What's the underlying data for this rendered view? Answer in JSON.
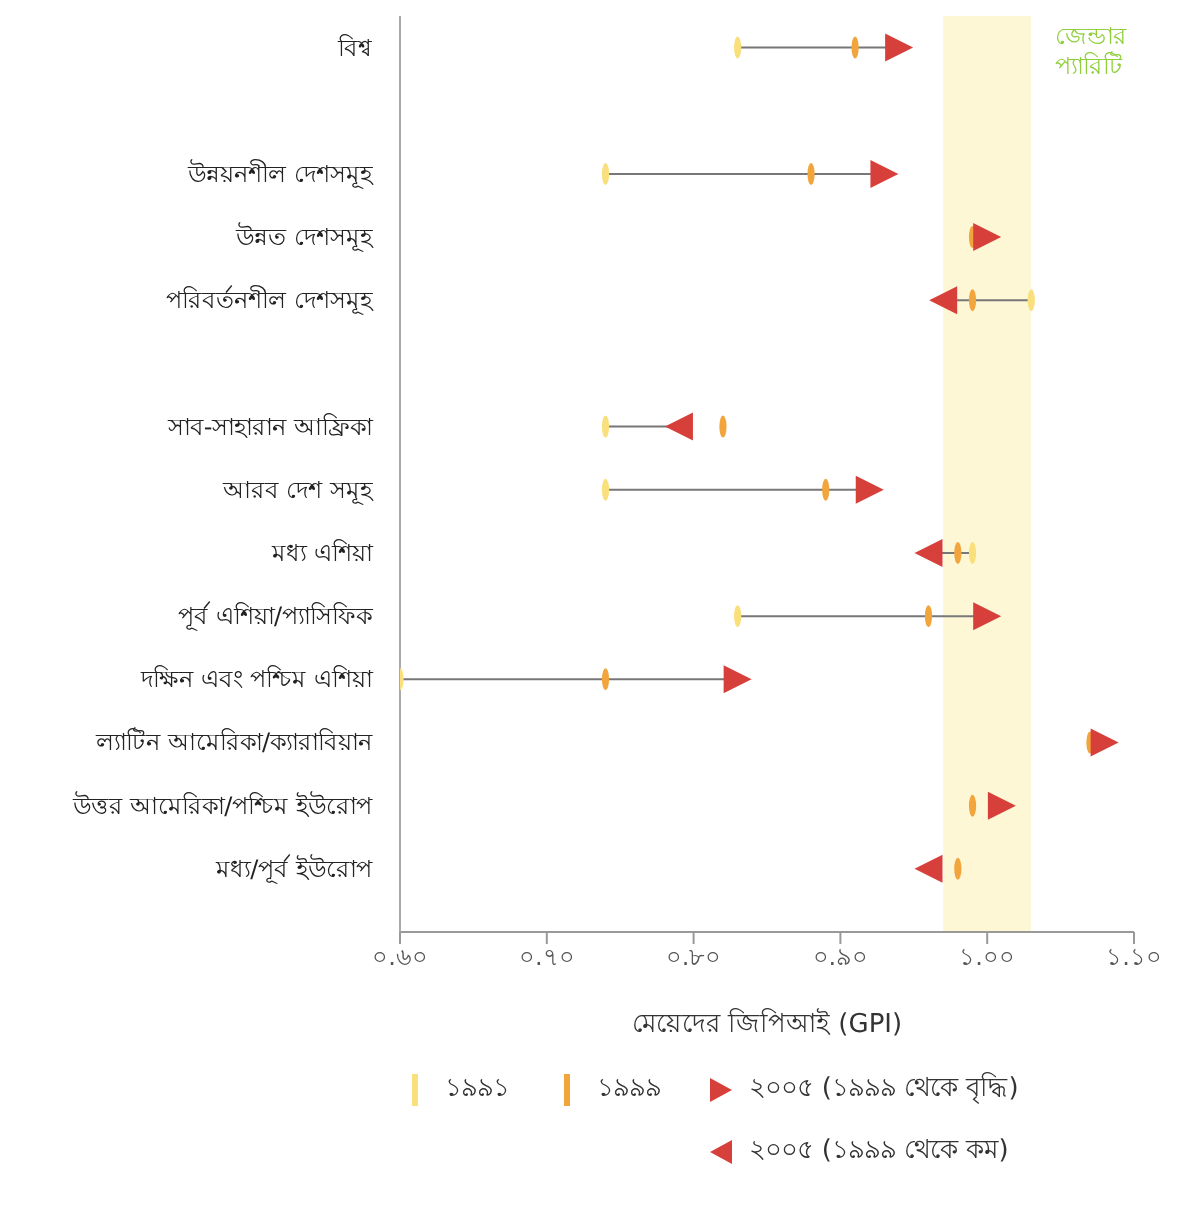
{
  "chart_data": {
    "type": "scatter",
    "orientation": "horizontal",
    "xlabel": "মেয়েদের জিপিআই (GPI)",
    "categories": [
      "বিশ্ব",
      null,
      "উন্নয়নশীল দেশসমূহ",
      "উন্নত দেশসমূহ",
      "পরিবর্তনশীল দেশসমূহ",
      null,
      "সাব-সাহারান আফ্রিকা",
      "আরব দেশ সমূহ",
      "মধ্য এশিয়া",
      "পূর্ব এশিয়া/প্যাসিফিক",
      "দক্ষিন এবং পশ্চিম এশিয়া",
      "ল্যাটিন আমেরিকা/ক্যারাবিয়ান",
      "উত্তর আমেরিকা/পশ্চিম ইউরোপ",
      "মধ্য/পূর্ব ইউরোপ"
    ],
    "series": [
      {
        "name": "১৯৯১",
        "color": "#f9e07c",
        "values": [
          0.83,
          null,
          0.74,
          null,
          1.03,
          null,
          0.74,
          0.74,
          0.99,
          0.83,
          0.6,
          null,
          null,
          null
        ]
      },
      {
        "name": "১৯৯৯",
        "color": "#f2a53c",
        "values": [
          0.91,
          null,
          0.88,
          0.99,
          0.99,
          null,
          0.82,
          0.89,
          0.98,
          0.96,
          0.74,
          1.07,
          0.99,
          0.98
        ]
      },
      {
        "name": "২০০৫ (১৯৯৯ থেকে বৃদ্ধি)",
        "color": "#d7403a",
        "values": [
          0.94,
          null,
          0.93,
          1.0,
          null,
          null,
          null,
          0.92,
          null,
          1.0,
          0.83,
          1.08,
          1.01,
          null
        ]
      },
      {
        "name": "২০০৫ (১৯৯৯ থেকে কম)",
        "color": "#d7403a",
        "values": [
          null,
          null,
          null,
          null,
          0.97,
          null,
          0.79,
          null,
          0.96,
          null,
          null,
          null,
          null,
          0.96
        ]
      }
    ],
    "xlim": [
      0.6,
      1.1
    ],
    "xticks": [
      {
        "value": 0.6,
        "label": "০.৬০"
      },
      {
        "value": 0.7,
        "label": "০.৭০"
      },
      {
        "value": 0.8,
        "label": "০.৮০"
      },
      {
        "value": 0.9,
        "label": "০.৯০"
      },
      {
        "value": 1.0,
        "label": "১.০০"
      },
      {
        "value": 1.1,
        "label": "১.১০"
      }
    ],
    "bands": [
      {
        "axis": "x",
        "from": 0.97,
        "to": 1.03,
        "label": "জেন্ডার প্যারিটি",
        "color": "#fdf7d6"
      }
    ],
    "legend": "bottom"
  }
}
